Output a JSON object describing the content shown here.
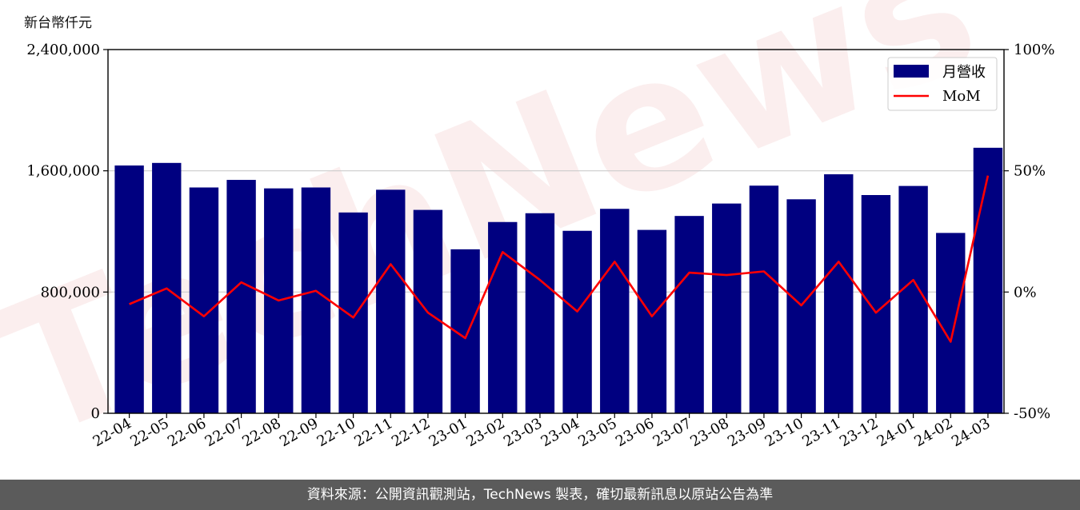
{
  "chart_data": {
    "type": "bar+line",
    "y_unit_label": "新台幣仟元",
    "categories": [
      "22-04",
      "22-05",
      "22-06",
      "22-07",
      "22-08",
      "22-09",
      "22-10",
      "22-11",
      "22-12",
      "23-01",
      "23-02",
      "23-03",
      "23-04",
      "23-05",
      "23-06",
      "23-07",
      "23-08",
      "23-09",
      "23-10",
      "23-11",
      "23-12",
      "24-01",
      "24-02",
      "24-03"
    ],
    "series": [
      {
        "name": "月營收",
        "kind": "bar",
        "axis": "left",
        "color": "#000080",
        "values": [
          1635000,
          1652000,
          1490000,
          1540000,
          1484000,
          1490000,
          1325000,
          1475000,
          1342000,
          1082000,
          1262000,
          1320000,
          1204000,
          1349000,
          1210000,
          1302000,
          1384000,
          1502000,
          1412000,
          1577000,
          1440000,
          1500000,
          1190000,
          1752000
        ]
      },
      {
        "name": "MoM",
        "kind": "line",
        "axis": "right",
        "color": "#ff0000",
        "values": [
          -5.0,
          1.5,
          -10.0,
          4.0,
          -3.5,
          0.5,
          -10.5,
          11.5,
          -8.5,
          -19.0,
          16.5,
          5.0,
          -8.0,
          12.5,
          -10.0,
          8.0,
          7.0,
          8.5,
          -5.5,
          12.5,
          -8.5,
          5.0,
          -20.5,
          48.0
        ]
      }
    ],
    "y_left": {
      "min": 0,
      "max": 2400000,
      "ticks": [
        "0",
        "800,000",
        "1,600,000",
        "2,400,000"
      ],
      "tick_values": [
        0,
        800000,
        1600000,
        2400000
      ]
    },
    "y_right": {
      "min": -50,
      "max": 100,
      "ticks": [
        "-50%",
        "0%",
        "50%",
        "100%"
      ],
      "tick_values": [
        -50,
        0,
        50,
        100
      ]
    },
    "grid": "horizontal",
    "legend_position": "top-right",
    "watermark": "TechNews"
  },
  "footer": {
    "text": "資料來源：公開資訊觀測站，TechNews 製表，確切最新訊息以原站公告為準"
  }
}
